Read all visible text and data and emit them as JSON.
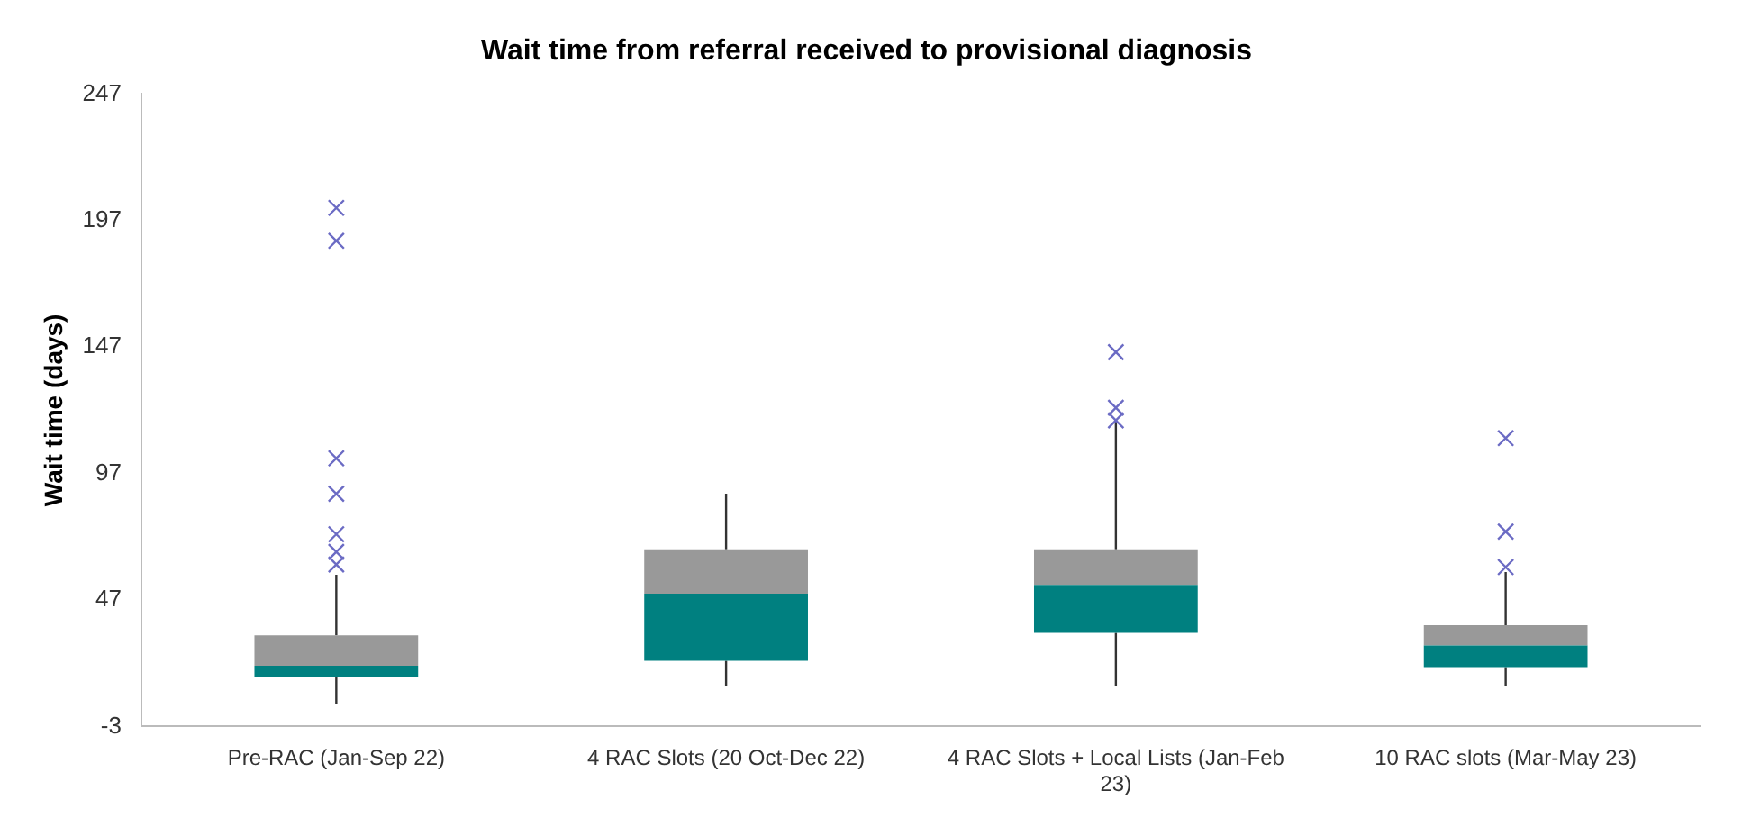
{
  "chart_data": {
    "type": "box",
    "title": "Wait time from referral received to provisional diagnosis",
    "ylabel": "Wait time (days)",
    "categories": [
      "Pre-RAC (Jan-Sep 22)",
      "4 RAC Slots (20 Oct-Dec 22)",
      "4 RAC Slots + Local Lists (Jan-Feb 23)",
      "10 RAC slots (Mar-May 23)"
    ],
    "boxes": [
      {
        "low": 6,
        "q1": 16.5,
        "median": 21,
        "q3": 33,
        "high": 57,
        "outliers": [
          202,
          189,
          103,
          89,
          73,
          66,
          61
        ]
      },
      {
        "low": 13,
        "q1": 23,
        "median": 49.5,
        "q3": 67,
        "high": 89
      },
      {
        "low": 13,
        "q1": 34,
        "median": 53,
        "q3": 67,
        "high": 118,
        "outliers": [
          145,
          123,
          118
        ]
      },
      {
        "low": 13,
        "q1": 20.5,
        "median": 29,
        "q3": 37,
        "high": 58,
        "outliers": [
          111,
          74,
          60
        ]
      }
    ],
    "color": "#008080",
    "ylim": [
      -3,
      247
    ],
    "yticks": [
      -3,
      47,
      97,
      147,
      197,
      247
    ],
    "grid": false,
    "legend": false,
    "marker": "cross"
  }
}
